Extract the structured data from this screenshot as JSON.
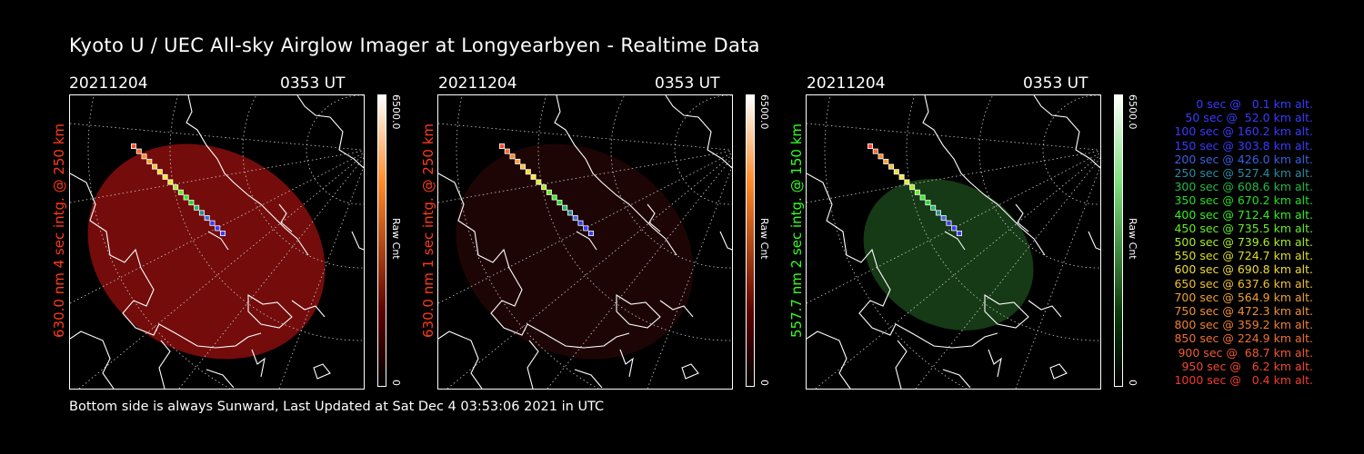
{
  "title": "Kyoto U / UEC All-sky Airglow Imager at Longyearbyen - Realtime Data",
  "footer": "Bottom side is always Sunward, Last Updated at Sat Dec  4 03:53:06 2021 in UTC",
  "colorbar": {
    "max_label": "6500.0",
    "unit_label": "Raw Cnt",
    "min_label": "0"
  },
  "panels": [
    {
      "date": "20211204",
      "time": "0353 UT",
      "ylabel": "630.0 nm 4 sec intg. @ 250 km",
      "label_color": "#ff3a1a",
      "tint": "#7a0d0d",
      "bar_top": "#ffffff",
      "bar_mid": "#ff8a2a",
      "bar_bot": "#5a0000",
      "fill_level": 0.55
    },
    {
      "date": "20211204",
      "time": "0353 UT",
      "ylabel": "630.0 nm 1 sec intg. @ 250 km",
      "label_color": "#ff3a1a",
      "tint": "#200505",
      "bar_top": "#ffffff",
      "bar_mid": "#ff8a2a",
      "bar_bot": "#5a0000",
      "fill_level": 0.14
    },
    {
      "date": "20211204",
      "time": "0353 UT",
      "ylabel": "557.7 nm 2 sec intg. @ 150 km",
      "label_color": "#33ff22",
      "tint": "#163d16",
      "bar_top": "#ffffff",
      "bar_mid": "#7de07d",
      "bar_bot": "#0a3a0a",
      "fill_level": 0.38
    }
  ],
  "legend": [
    {
      "text": "0 sec @   0.1 km alt.",
      "color": "#3a3aff"
    },
    {
      "text": "50 sec @  52.0 km alt.",
      "color": "#3a3aff"
    },
    {
      "text": "100 sec @ 160.2 km alt.",
      "color": "#3a3aff"
    },
    {
      "text": "150 sec @ 303.8 km alt.",
      "color": "#3a3aff"
    },
    {
      "text": "200 sec @ 426.0 km alt.",
      "color": "#3a5fe0"
    },
    {
      "text": "250 sec @ 527.4 km alt.",
      "color": "#2a8aa0"
    },
    {
      "text": "300 sec @ 608.6 km alt.",
      "color": "#22bb44"
    },
    {
      "text": "350 sec @ 670.2 km alt.",
      "color": "#22dd22"
    },
    {
      "text": "400 sec @ 712.4 km alt.",
      "color": "#33ee22"
    },
    {
      "text": "450 sec @ 735.5 km alt.",
      "color": "#66ee22"
    },
    {
      "text": "500 sec @ 739.6 km alt.",
      "color": "#aaee22"
    },
    {
      "text": "550 sec @ 724.7 km alt.",
      "color": "#dddd22"
    },
    {
      "text": "600 sec @ 690.8 km alt.",
      "color": "#eedd33"
    },
    {
      "text": "650 sec @ 637.6 km alt.",
      "color": "#f0c030"
    },
    {
      "text": "700 sec @ 564.9 km alt.",
      "color": "#f0a030"
    },
    {
      "text": "750 sec @ 472.3 km alt.",
      "color": "#f09030"
    },
    {
      "text": "800 sec @ 359.2 km alt.",
      "color": "#f08030"
    },
    {
      "text": "850 sec @ 224.9 km alt.",
      "color": "#f07030"
    },
    {
      "text": "900 sec @  68.7 km alt.",
      "color": "#f05a30"
    },
    {
      "text": "950 sec @   6.2 km alt.",
      "color": "#f04a30"
    },
    {
      "text": "1000 sec @   0.4 km alt.",
      "color": "#f03a30"
    }
  ]
}
